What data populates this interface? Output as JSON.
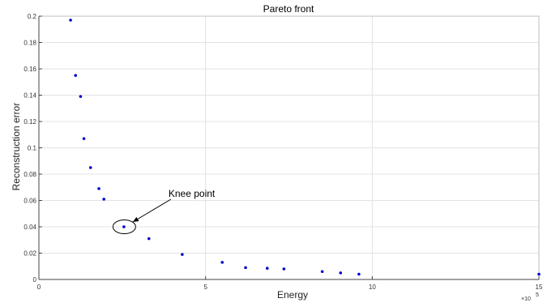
{
  "chart_data": {
    "type": "scatter",
    "title": "Pareto front",
    "xlabel": "Energy",
    "ylabel": "Reconstruction error",
    "x_multiplier_label": "×10",
    "x_multiplier_exponent": "5",
    "xlim": [
      0,
      15
    ],
    "ylim": [
      0,
      0.2
    ],
    "x_ticks": [
      0,
      5,
      10,
      15
    ],
    "x_tick_labels": [
      "0",
      "5",
      "10",
      "15"
    ],
    "y_ticks": [
      0,
      0.02,
      0.04,
      0.06,
      0.08,
      0.1,
      0.12,
      0.14,
      0.16,
      0.18,
      0.2
    ],
    "y_tick_labels": [
      "0",
      "0.02",
      "0.04",
      "0.06",
      "0.08",
      "0.1",
      "0.12",
      "0.14",
      "0.16",
      "0.18",
      "0.2"
    ],
    "grid": true,
    "marker_color": "#0000cc",
    "points": [
      {
        "x": 0.95,
        "y": 0.197
      },
      {
        "x": 1.1,
        "y": 0.155
      },
      {
        "x": 1.25,
        "y": 0.139
      },
      {
        "x": 1.35,
        "y": 0.107
      },
      {
        "x": 1.55,
        "y": 0.085
      },
      {
        "x": 1.8,
        "y": 0.069
      },
      {
        "x": 1.95,
        "y": 0.061
      },
      {
        "x": 2.55,
        "y": 0.04
      },
      {
        "x": 3.3,
        "y": 0.031
      },
      {
        "x": 4.3,
        "y": 0.019
      },
      {
        "x": 5.5,
        "y": 0.013
      },
      {
        "x": 6.2,
        "y": 0.009
      },
      {
        "x": 6.85,
        "y": 0.0085
      },
      {
        "x": 7.35,
        "y": 0.008
      },
      {
        "x": 8.5,
        "y": 0.006
      },
      {
        "x": 9.05,
        "y": 0.005
      },
      {
        "x": 9.6,
        "y": 0.004
      },
      {
        "x": 15.0,
        "y": 0.004
      }
    ],
    "annotation": {
      "text": "Knee point",
      "point": {
        "x": 2.55,
        "y": 0.04
      }
    }
  }
}
